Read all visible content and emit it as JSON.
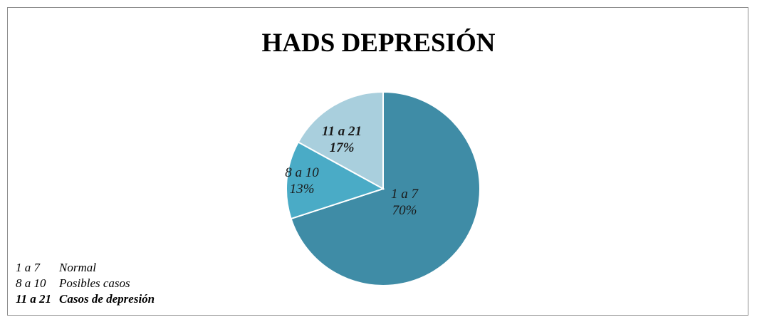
{
  "chart_data": {
    "type": "pie",
    "title": "HADS DEPRESIÓN",
    "categories": [
      "1 a 7",
      "8 a 10",
      "11 a 21"
    ],
    "values": [
      70,
      13,
      17
    ],
    "slice_labels": [
      {
        "category": "1 a 7",
        "percent": "70%",
        "bold": false
      },
      {
        "category": "8 a 10",
        "percent": "13%",
        "bold": false
      },
      {
        "category": "11 a 21",
        "percent": "17%",
        "bold": true
      }
    ],
    "colors": [
      "#3f8ca6",
      "#4aabc6",
      "#a9cfdd"
    ],
    "start_angle_deg": 0,
    "direction": "clockwise"
  },
  "legend": {
    "items": [
      {
        "range": "1 a 7",
        "meaning": "Normal",
        "bold": false
      },
      {
        "range": "8 a 10",
        "meaning": "Posibles casos",
        "bold": false
      },
      {
        "range": "11 a 21",
        "meaning": "Casos de depresión",
        "bold": true
      }
    ]
  }
}
